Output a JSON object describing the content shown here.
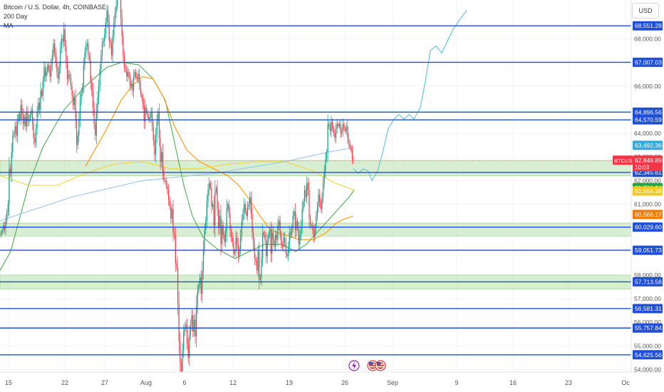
{
  "header": {
    "symbol": "Bitcoin / U.S. Dollar, 4h, COINBASE",
    "indicator_1": "200 Day",
    "indicator_2": "MA"
  },
  "currency_button": "USD",
  "colors": {
    "hline": "#1f4fd8",
    "zone_fill": "#c9e8c3",
    "zone_border": "#8fcf86",
    "up_candle": "#089981",
    "down_candle": "#f23645",
    "ma_green": "#4caf50",
    "ma_orange": "#ff9800",
    "ma_yellow": "#f5d538",
    "ma_lightblue": "#9fc3f0",
    "projection": "#5bc0de"
  },
  "chart_data": {
    "type": "candlestick",
    "title": "Bitcoin / U.S. Dollar, 4h, COINBASE",
    "ylim": [
      53900,
      70300
    ],
    "y_ticks": [
      54000,
      55000,
      56000,
      57000,
      58000,
      59000,
      60000,
      61000,
      62000,
      63000,
      64000,
      65000,
      66000,
      67000,
      68000
    ],
    "y_tick_labels": [
      "54,000.00",
      "55,000.00",
      "56,000.00",
      "57,000.00",
      "58,000.00",
      "59,000.00",
      "60,000.00",
      "61,000.00",
      "62,000.00",
      "63,000.00",
      "64,000.00",
      "65,000.00",
      "66,000.00",
      "67,000.00",
      "68,000.00"
    ],
    "x_ticks": [
      {
        "label": "15",
        "px": 12
      },
      {
        "label": "22",
        "px": 91
      },
      {
        "label": "27",
        "px": 147
      },
      {
        "label": "Aug",
        "px": 205
      },
      {
        "label": "6",
        "px": 259
      },
      {
        "label": "12",
        "px": 327
      },
      {
        "label": "19",
        "px": 406
      },
      {
        "label": "26",
        "px": 484
      },
      {
        "label": "Sep",
        "px": 551
      },
      {
        "label": "9",
        "px": 641
      },
      {
        "label": "16",
        "px": 720
      },
      {
        "label": "23",
        "px": 798
      },
      {
        "label": "Oc",
        "px": 878
      }
    ],
    "horizontal_levels": [
      68551.28,
      67007.03,
      64896.56,
      64570.59,
      62345.61,
      60029.6,
      59051.73,
      57713.58,
      56581.31,
      55757.84,
      54625.56
    ],
    "level_labels": [
      "68,551.28",
      "67,007.03",
      "64,896.56",
      "64,570.59",
      "62,345.61",
      "60,029.60",
      "59,051.73",
      "57,713.58",
      "56,581.31",
      "55,757.84",
      "54,625.56"
    ],
    "zones": [
      [
        62200,
        62850
      ],
      [
        59650,
        60200
      ],
      [
        57400,
        58000
      ]
    ],
    "price_tags": [
      {
        "label": "63,492.36",
        "value": 63492.36,
        "color": "#3aa8d8"
      },
      {
        "label": "61,701.24",
        "value": 61701.24,
        "color": "#22a83a"
      },
      {
        "label": "61,556.38",
        "value": 61556.38,
        "color": "#f2c91e"
      },
      {
        "label": "60,566.17",
        "value": 60566.17,
        "color": "#f57c00"
      }
    ],
    "current_price": {
      "symbol": "BTCUSD",
      "price": "62,848.89",
      "countdown": "10:03",
      "value": 62848.89
    },
    "candles_close": [
      59800,
      59900,
      60100,
      59950,
      60300,
      60650,
      61000,
      62500,
      62300,
      63200,
      63900,
      64000,
      64300,
      63900,
      64500,
      64800,
      64600,
      65200,
      64800,
      64400,
      64700,
      64300,
      64900,
      64500,
      64600,
      64800,
      65000,
      64400,
      63800,
      63600,
      64200,
      64900,
      65300,
      65000,
      65800,
      65600,
      66200,
      66800,
      66400,
      66600,
      66900,
      66700,
      66400,
      66900,
      67300,
      67800,
      67400,
      67000,
      66600,
      66300,
      66800,
      67600,
      68000,
      67900,
      68400,
      67700,
      67000,
      66300,
      66500,
      66400,
      66000,
      65600,
      65200,
      65500,
      64600,
      63500,
      63900,
      64600,
      65400,
      65700,
      66000,
      66900,
      67400,
      67700,
      67800,
      67300,
      67100,
      66200,
      65800,
      65100,
      64400,
      63900,
      64900,
      65500,
      66000,
      66700,
      67300,
      67800,
      67900,
      68200,
      68700,
      69200,
      68700,
      67900,
      67800,
      67300,
      68100,
      68700,
      69100,
      69400,
      69900,
      70000,
      69800,
      68900,
      68100,
      67300,
      66800,
      66700,
      66400,
      66600,
      66400,
      66000,
      66100,
      65800,
      66400,
      66600,
      66400,
      66300,
      66500,
      66100,
      65700,
      65500,
      65200,
      64500,
      65100,
      64900,
      64700,
      64600,
      64700,
      64900,
      64300,
      63700,
      63100,
      63900,
      64500,
      64900,
      63800,
      62800,
      63200,
      62400,
      62000,
      62000,
      61800,
      61600,
      61200,
      60900,
      60400,
      60800,
      59800,
      59700,
      58500,
      58300,
      56800,
      55200,
      54300,
      53900,
      54800,
      55600,
      55800,
      55900,
      55100,
      54500,
      55500,
      55900,
      56300,
      55600,
      56100,
      55400,
      56700,
      57300,
      57600,
      57900,
      57200,
      58200,
      59100,
      59900,
      60300,
      61100,
      61600,
      61900,
      61700,
      60900,
      61000,
      60100,
      61500,
      61700,
      60800,
      60000,
      60500,
      59300,
      60100,
      59700,
      59400,
      59800,
      60800,
      61000,
      60600,
      59900,
      59600,
      59400,
      58900,
      59000,
      59600,
      59300,
      58800,
      59100,
      59700,
      60300,
      60600,
      61000,
      60700,
      60500,
      60900,
      61000,
      61300,
      60600,
      59800,
      59300,
      58700,
      58600,
      58200,
      59000,
      57800,
      57900,
      58700,
      59800,
      59700,
      59500,
      58800,
      59400,
      59700,
      59900,
      58900,
      59800,
      59500,
      59200,
      59700,
      59500,
      60100,
      60300,
      59700,
      59300,
      59200,
      59600,
      59400,
      58900,
      58800,
      59200,
      59800,
      59700,
      60000,
      60500,
      60700,
      59900,
      60300,
      60000,
      59300,
      59700,
      60100,
      60800,
      61100,
      61600,
      61300,
      61900,
      61600,
      60400,
      60100,
      60100,
      59900,
      59600,
      60000,
      60500,
      60900,
      61400,
      61100,
      60800,
      61300,
      61900,
      62400,
      62900,
      63200,
      64400,
      64300,
      64100,
      64500,
      64200,
      64000,
      63800,
      64200,
      64400,
      64300,
      64400,
      64000,
      64100,
      64400,
      64200,
      64100,
      64300,
      63800,
      63600,
      63400,
      63300,
      62900,
      62849
    ],
    "moving_averages": [
      {
        "color": "#4caf50",
        "points": [
          [
            0,
            58200
          ],
          [
            15,
            59000
          ],
          [
            40,
            61800
          ],
          [
            60,
            63400
          ],
          [
            90,
            65000
          ],
          [
            120,
            66000
          ],
          [
            150,
            66800
          ],
          [
            170,
            67000
          ],
          [
            195,
            66900
          ],
          [
            215,
            66300
          ],
          [
            232,
            65400
          ],
          [
            245,
            63600
          ],
          [
            258,
            61800
          ],
          [
            270,
            60500
          ],
          [
            285,
            59600
          ],
          [
            305,
            59100
          ],
          [
            330,
            58700
          ],
          [
            350,
            59000
          ],
          [
            372,
            59300
          ],
          [
            395,
            59300
          ],
          [
            415,
            59000
          ],
          [
            430,
            59300
          ],
          [
            445,
            59800
          ],
          [
            460,
            60300
          ],
          [
            475,
            60800
          ],
          [
            490,
            61300
          ],
          [
            497,
            61600
          ]
        ]
      },
      {
        "color": "#ff9800",
        "points": [
          [
            120,
            62600
          ],
          [
            150,
            64200
          ],
          [
            170,
            65400
          ],
          [
            185,
            66000
          ],
          [
            200,
            66400
          ],
          [
            215,
            66300
          ],
          [
            230,
            65500
          ],
          [
            245,
            64300
          ],
          [
            262,
            63300
          ],
          [
            280,
            62800
          ],
          [
            300,
            62500
          ],
          [
            320,
            62200
          ],
          [
            335,
            61800
          ],
          [
            350,
            61200
          ],
          [
            365,
            60500
          ],
          [
            380,
            59900
          ],
          [
            400,
            59700
          ],
          [
            420,
            59500
          ],
          [
            440,
            59500
          ],
          [
            458,
            59800
          ],
          [
            472,
            60200
          ],
          [
            485,
            60400
          ],
          [
            496,
            60500
          ]
        ]
      },
      {
        "color": "#f5d538",
        "points": [
          [
            0,
            62200
          ],
          [
            40,
            61800
          ],
          [
            80,
            61800
          ],
          [
            120,
            62300
          ],
          [
            160,
            62700
          ],
          [
            200,
            62800
          ],
          [
            240,
            62500
          ],
          [
            280,
            62500
          ],
          [
            320,
            62700
          ],
          [
            360,
            62800
          ],
          [
            400,
            62800
          ],
          [
            440,
            62400
          ],
          [
            470,
            61900
          ],
          [
            497,
            61600
          ]
        ]
      },
      {
        "color": "#9fc3f0",
        "points": [
          [
            0,
            60300
          ],
          [
            100,
            61300
          ],
          [
            200,
            62000
          ],
          [
            300,
            62300
          ],
          [
            400,
            62800
          ],
          [
            460,
            63200
          ],
          [
            497,
            63400
          ]
        ]
      }
    ],
    "projection_path": [
      [
        496,
        62500
      ],
      [
        503,
        62300
      ],
      [
        510,
        62500
      ],
      [
        517,
        62400
      ],
      [
        522,
        62000
      ],
      [
        530,
        62400
      ],
      [
        538,
        63300
      ],
      [
        545,
        64200
      ],
      [
        553,
        64600
      ],
      [
        560,
        64800
      ],
      [
        567,
        64600
      ],
      [
        574,
        64800
      ],
      [
        581,
        64600
      ],
      [
        590,
        65100
      ],
      [
        597,
        66200
      ],
      [
        604,
        67500
      ],
      [
        612,
        67700
      ],
      [
        620,
        67400
      ],
      [
        628,
        67900
      ],
      [
        636,
        68400
      ],
      [
        645,
        68800
      ],
      [
        655,
        69200
      ]
    ]
  }
}
